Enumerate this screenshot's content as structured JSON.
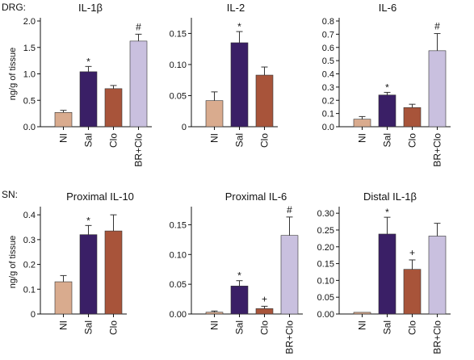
{
  "rows": [
    {
      "label": "DRG:"
    },
    {
      "label": "SN:"
    }
  ],
  "colors": {
    "NI": "#d9ab8e",
    "Sal": "#3a1f66",
    "Clo": "#a8543a",
    "BR+Clo": "#c9c0df"
  },
  "chart_data": [
    {
      "type": "bar",
      "title": "IL-1β",
      "ylabel": "ng/g of tissue",
      "categories": [
        "NI",
        "Sal",
        "Clo",
        "BR+Clo"
      ],
      "values": [
        0.27,
        1.04,
        0.72,
        1.62
      ],
      "errors": [
        0.04,
        0.1,
        0.06,
        0.13
      ],
      "annotations": [
        "",
        "*",
        "",
        "#"
      ],
      "yticks": [
        "0.0",
        "0.5",
        "1.0",
        "1.5",
        "2.0"
      ],
      "ylim": [
        0,
        2.0
      ]
    },
    {
      "type": "bar",
      "title": "IL-2",
      "ylabel": "",
      "categories": [
        "NI",
        "Sal",
        "Clo"
      ],
      "values": [
        0.042,
        0.135,
        0.083
      ],
      "errors": [
        0.014,
        0.018,
        0.013
      ],
      "annotations": [
        "",
        "*",
        ""
      ],
      "yticks": [
        "0",
        "0.05",
        "0.10",
        "0.15"
      ],
      "ylim": [
        0,
        0.17
      ]
    },
    {
      "type": "bar",
      "title": "IL-6",
      "ylabel": "",
      "categories": [
        "NI",
        "Sal",
        "Clo",
        "BR+Clo"
      ],
      "values": [
        0.057,
        0.24,
        0.145,
        0.575
      ],
      "errors": [
        0.02,
        0.02,
        0.025,
        0.13
      ],
      "annotations": [
        "",
        "*",
        "",
        "#"
      ],
      "yticks": [
        "0.0",
        "0.1",
        "0.2",
        "0.3",
        "0.4",
        "0.5",
        "0.6",
        "0.7",
        "0.8"
      ],
      "ylim": [
        0,
        0.8
      ]
    },
    {
      "type": "bar",
      "title": "Proximal IL-10",
      "ylabel": "ng/g of tissue",
      "categories": [
        "NI",
        "Sal",
        "Clo"
      ],
      "values": [
        0.13,
        0.32,
        0.335
      ],
      "errors": [
        0.025,
        0.037,
        0.065
      ],
      "annotations": [
        "",
        "*",
        ""
      ],
      "yticks": [
        "0",
        "0.1",
        "0.2",
        "0.3",
        "0.4"
      ],
      "ylim": [
        0,
        0.42
      ]
    },
    {
      "type": "bar",
      "title": "Proximal IL-6",
      "ylabel": "",
      "categories": [
        "NI",
        "Sal",
        "Clo",
        "BR+Clo"
      ],
      "values": [
        0.003,
        0.047,
        0.009,
        0.132
      ],
      "errors": [
        0.002,
        0.009,
        0.004,
        0.031
      ],
      "annotations": [
        "",
        "*",
        "+",
        "#"
      ],
      "yticks": [
        "0.00",
        "0.05",
        "0.10",
        "0.15"
      ],
      "ylim": [
        0,
        0.175
      ]
    },
    {
      "type": "bar",
      "title": "Distal IL-1β",
      "ylabel": "",
      "categories": [
        "NI",
        "Sal",
        "Clo",
        "BR+Clo"
      ],
      "values": [
        0.005,
        0.238,
        0.133,
        0.232
      ],
      "errors": [
        0,
        0.05,
        0.028,
        0.038
      ],
      "annotations": [
        "",
        "*",
        "+",
        ""
      ],
      "yticks": [
        "0.00",
        "0.05",
        "0.10",
        "0.15",
        "0.20",
        "0.25",
        "0.30"
      ],
      "ylim": [
        0,
        0.31
      ]
    }
  ]
}
